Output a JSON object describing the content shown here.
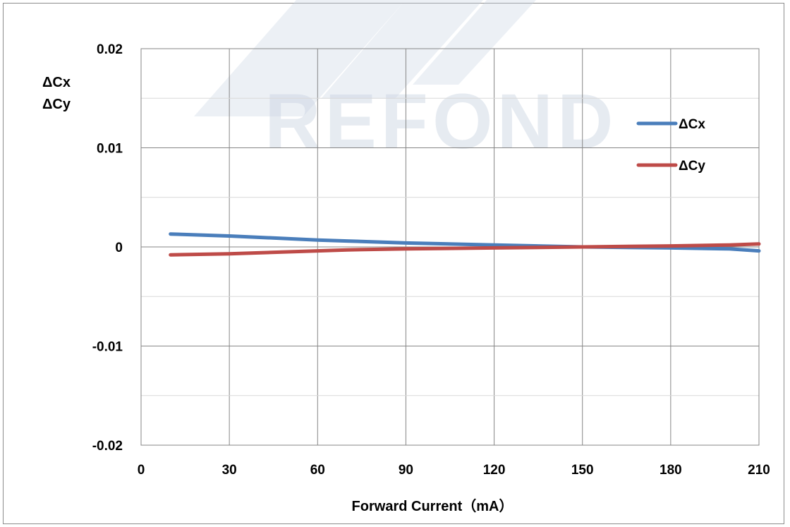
{
  "chart_data": {
    "type": "line",
    "title": "",
    "xlabel": "Forward Current（mA）",
    "ylabel_lines": [
      "ΔCx",
      "ΔCy"
    ],
    "x_ticks": [
      0,
      30,
      60,
      90,
      120,
      150,
      180,
      210
    ],
    "y_ticks": [
      0.02,
      0.01,
      0,
      -0.01,
      -0.02
    ],
    "y_tick_labels": [
      "0.02",
      "0.01",
      "0",
      "-0.01",
      "-0.02"
    ],
    "xlim": [
      0,
      210
    ],
    "ylim": [
      -0.02,
      0.02
    ],
    "grid": true,
    "legend_position": "right",
    "watermark": "REFOND",
    "series": [
      {
        "name": "ΔCx",
        "color": "#4a7ebb",
        "x": [
          10,
          30,
          60,
          70,
          90,
          120,
          150,
          180,
          200,
          210
        ],
        "y": [
          0.0013,
          0.0011,
          0.0007,
          0.0006,
          0.0004,
          0.0002,
          0.0,
          -0.0001,
          -0.0002,
          -0.0004
        ]
      },
      {
        "name": "ΔCy",
        "color": "#be4b48",
        "x": [
          10,
          30,
          60,
          70,
          90,
          120,
          150,
          180,
          200,
          210
        ],
        "y": [
          -0.0008,
          -0.0007,
          -0.0004,
          -0.0003,
          -0.0002,
          -0.0001,
          0.0,
          0.0001,
          0.0002,
          0.0003
        ]
      }
    ]
  }
}
